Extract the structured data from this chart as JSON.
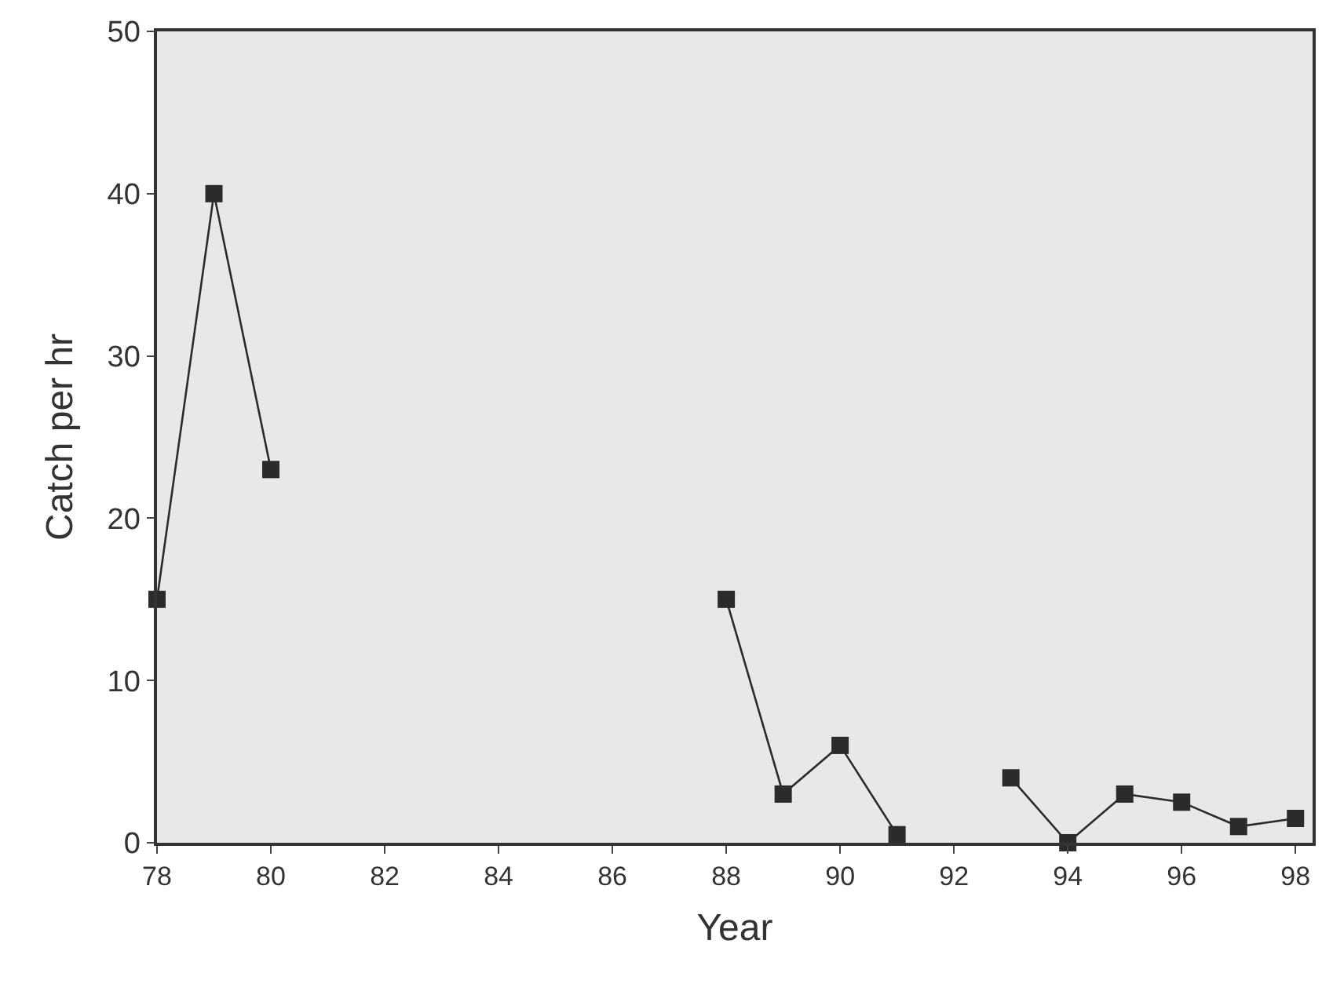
{
  "chart_data": {
    "type": "line",
    "xlabel": "Year",
    "ylabel": "Catch per hr",
    "x": [
      78,
      79,
      80,
      84,
      88,
      89,
      90,
      91,
      92,
      93,
      94,
      95,
      96,
      97,
      98
    ],
    "series": [
      {
        "color": "#2b2b2b",
        "values": [
          15,
          40,
          23,
          null,
          15,
          3,
          6,
          0.5,
          null,
          4,
          0,
          3,
          2.5,
          1,
          1.5
        ]
      }
    ],
    "xlim": [
      78,
      98.3
    ],
    "xticks": [
      78,
      80,
      82,
      84,
      86,
      88,
      90,
      92,
      94,
      96,
      98
    ],
    "ylim": [
      0,
      50
    ],
    "yticks": [
      0,
      10,
      20,
      30,
      40,
      50
    ],
    "grid": false,
    "marker": "square",
    "line_style": "solid"
  }
}
